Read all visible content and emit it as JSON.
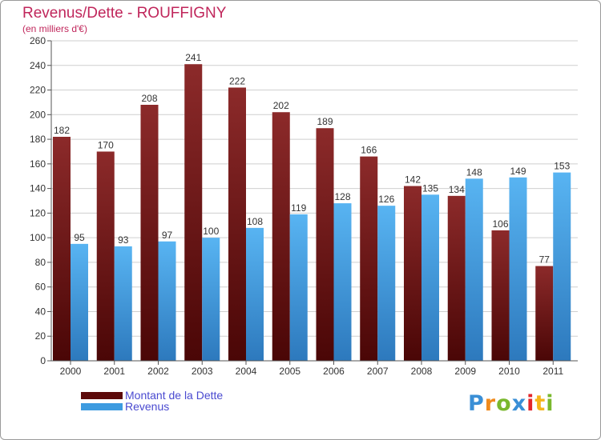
{
  "chart_data": {
    "type": "bar",
    "title": "Revenus/Dette - ROUFFIGNY",
    "subtitle": "(en milliers d'€)",
    "categories": [
      "2000",
      "2001",
      "2002",
      "2003",
      "2004",
      "2005",
      "2006",
      "2007",
      "2008",
      "2009",
      "2010",
      "2011"
    ],
    "series": [
      {
        "name": "Montant de la Dette",
        "color": "#7d1e1e",
        "values": [
          182,
          170,
          208,
          241,
          222,
          202,
          189,
          166,
          142,
          134,
          106,
          77
        ]
      },
      {
        "name": "Revenus",
        "color": "#3d9be0",
        "values": [
          95,
          93,
          97,
          100,
          108,
          119,
          128,
          126,
          135,
          148,
          149,
          153
        ]
      }
    ],
    "ylim": [
      0,
      260
    ],
    "yticks": [
      0,
      20,
      40,
      60,
      80,
      100,
      120,
      140,
      160,
      180,
      200,
      220,
      240,
      260
    ],
    "grid": true,
    "legend": "bottom-left"
  },
  "logo": {
    "text": "Proxiti",
    "letters": [
      "P",
      "r",
      "o",
      "x",
      "i",
      "t",
      "i"
    ],
    "colors": [
      "#3a8fd6",
      "#f08a1c",
      "#7ab82e",
      "#3a8fd6",
      "#e3262a",
      "#f5b51a",
      "#7ab82e"
    ]
  }
}
